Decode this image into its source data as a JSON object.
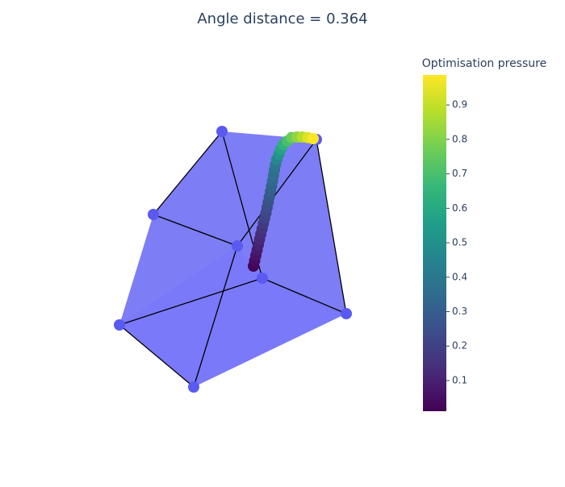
{
  "chart_data": {
    "type": "scatter3d",
    "title": "Angle distance = 0.364",
    "values": [
      0.02,
      0.04,
      0.06,
      0.08,
      0.1,
      0.12,
      0.14,
      0.16,
      0.18,
      0.2,
      0.22,
      0.24,
      0.26,
      0.28,
      0.3,
      0.32,
      0.34,
      0.36,
      0.38,
      0.4,
      0.46,
      0.52,
      0.58,
      0.64,
      0.7,
      0.76,
      0.82,
      0.88,
      0.94,
      0.99
    ],
    "colorbar": {
      "title": "Optimisation pressure",
      "lim": [
        0.011,
        0.987
      ],
      "ticks": [
        0.1,
        0.2,
        0.3,
        0.4,
        0.5,
        0.6,
        0.7,
        0.8,
        0.9
      ]
    },
    "colorscale": [
      "#440154",
      "#482878",
      "#3e4989",
      "#31688e",
      "#26828e",
      "#1f9e89",
      "#35b779",
      "#6ece58",
      "#b5de2b",
      "#fde725"
    ]
  }
}
